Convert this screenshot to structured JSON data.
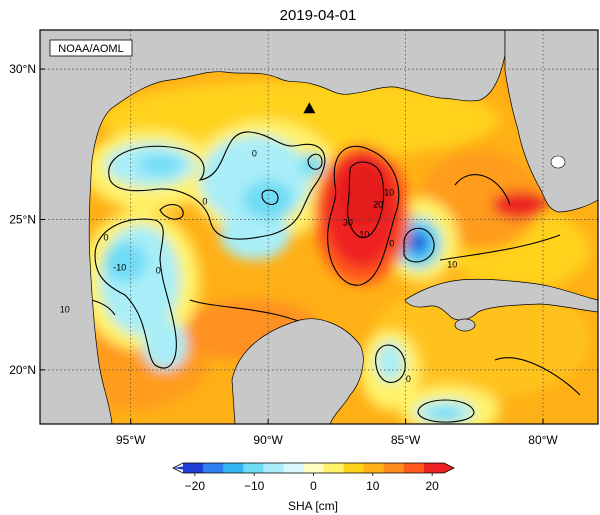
{
  "title": "2019-04-01",
  "credit": "NOAA/AOML",
  "lat_ticks": [
    {
      "value": 30,
      "label": "30°N"
    },
    {
      "value": 25,
      "label": "25°N"
    },
    {
      "value": 20,
      "label": "20°N"
    }
  ],
  "lon_ticks": [
    {
      "value": -95,
      "label": "95°W"
    },
    {
      "value": -90,
      "label": "90°W"
    },
    {
      "value": -85,
      "label": "85°W"
    },
    {
      "value": -80,
      "label": "80°W"
    }
  ],
  "extent": {
    "lon_min": -98.3,
    "lon_max": -78.0,
    "lat_min": 18.2,
    "lat_max": 31.3
  },
  "colorbar": {
    "label": "SHA [cm]",
    "ticks": [
      {
        "value": -20,
        "label": "−20"
      },
      {
        "value": -10,
        "label": "−10"
      },
      {
        "value": 0,
        "label": "0"
      },
      {
        "value": 10,
        "label": "10"
      },
      {
        "value": 20,
        "label": "20"
      }
    ],
    "min": -22,
    "max": 22,
    "colors": [
      "#1f3fd6",
      "#2f7ff0",
      "#35b6f2",
      "#6fdcf5",
      "#a9eef8",
      "#d9f8fb",
      "#fffcc0",
      "#fff26a",
      "#ffd21a",
      "#ffb016",
      "#ff8c1e",
      "#ff5a1a",
      "#ee2222"
    ]
  },
  "contour_labels": [
    {
      "text": "0",
      "lon": -90.5,
      "lat": 27.1
    },
    {
      "text": "0",
      "lon": -92.3,
      "lat": 25.5
    },
    {
      "text": "0",
      "lon": -95.9,
      "lat": 24.3
    },
    {
      "text": "0",
      "lon": -94.0,
      "lat": 23.2
    },
    {
      "text": "-10",
      "lon": -95.4,
      "lat": 23.3
    },
    {
      "text": "10",
      "lon": -97.4,
      "lat": 21.9
    },
    {
      "text": "10",
      "lon": -86.5,
      "lat": 24.4
    },
    {
      "text": "20",
      "lon": -86.0,
      "lat": 25.4
    },
    {
      "text": "30",
      "lon": -87.1,
      "lat": 24.8
    },
    {
      "text": "10",
      "lon": -85.6,
      "lat": 25.8
    },
    {
      "text": "0",
      "lon": -85.5,
      "lat": 24.1
    },
    {
      "text": "10",
      "lon": -83.3,
      "lat": 23.4
    },
    {
      "text": "0",
      "lon": -84.9,
      "lat": 19.6
    }
  ],
  "marker": {
    "symbol": "triangle",
    "lon": -88.5,
    "lat": 28.7
  }
}
